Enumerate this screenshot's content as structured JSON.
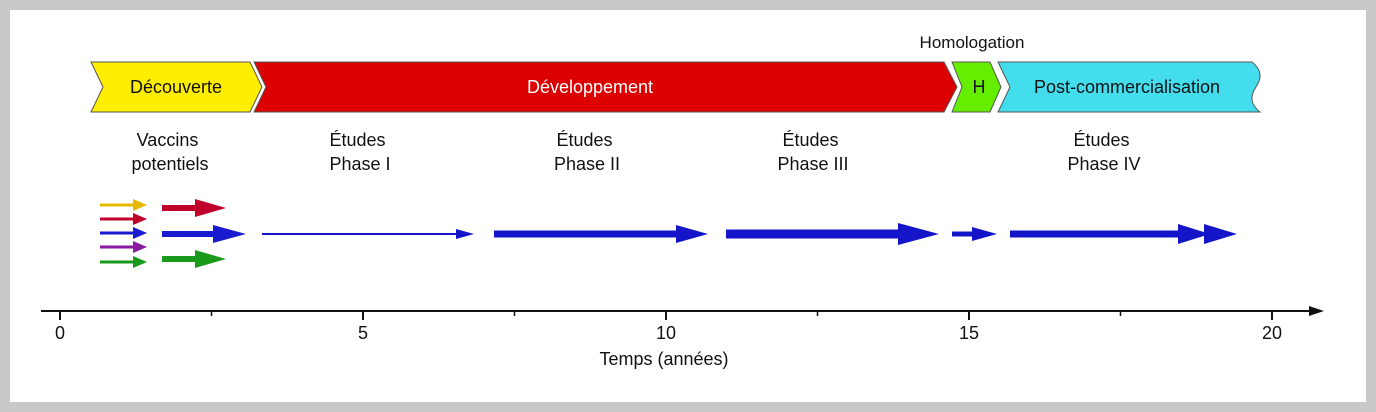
{
  "stages": {
    "approval_caption": "Homologation",
    "discovery": {
      "label": "Découverte",
      "color": "#ffee00"
    },
    "development": {
      "label": "Développement",
      "color": "#dd0000"
    },
    "approval": {
      "label": "H",
      "color": "#66ee00"
    },
    "post_marketing": {
      "label": "Post-commercialisation",
      "color": "#44ddee"
    }
  },
  "studies": [
    {
      "line1": "Vaccins",
      "line2": "potentiels"
    },
    {
      "line1": "Études",
      "line2": "Phase I"
    },
    {
      "line1": "Études",
      "line2": "Phase II"
    },
    {
      "line1": "Études",
      "line2": "Phase III"
    },
    {
      "line1": "Études",
      "line2": "Phase IV"
    }
  ],
  "candidate_colors": [
    "#e8b800",
    "#c0002a",
    "#1a1ad0",
    "#8a1aa0",
    "#1a9a1a"
  ],
  "flow_color": "#1414c8",
  "axis": {
    "min": 0,
    "max": 20,
    "major_ticks": [
      0,
      5,
      10,
      15,
      20
    ],
    "tick_labels": [
      "0",
      "5",
      "10",
      "15",
      "20"
    ],
    "minor_ticks": [
      2.5,
      7.5,
      12.5,
      17.5
    ],
    "title": "Temps (années)"
  }
}
